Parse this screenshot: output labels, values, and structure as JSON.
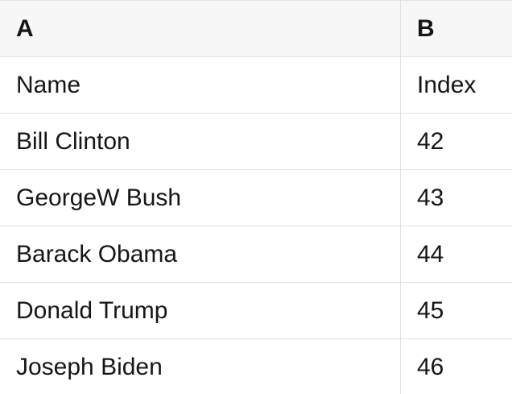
{
  "colors": {
    "header_bg": "#f7f7f7",
    "border": "#e2e2e2",
    "text": "#161616",
    "row_bg": "#ffffff"
  },
  "table": {
    "columns": [
      {
        "label": "A"
      },
      {
        "label": "B"
      }
    ],
    "rows": [
      {
        "a": "Name",
        "b": "Index"
      },
      {
        "a": "Bill Clinton",
        "b": "42"
      },
      {
        "a": "GeorgeW Bush",
        "b": "43"
      },
      {
        "a": "Barack Obama",
        "b": "44"
      },
      {
        "a": "Donald Trump",
        "b": "45"
      },
      {
        "a": "Joseph Biden",
        "b": "46"
      }
    ]
  }
}
